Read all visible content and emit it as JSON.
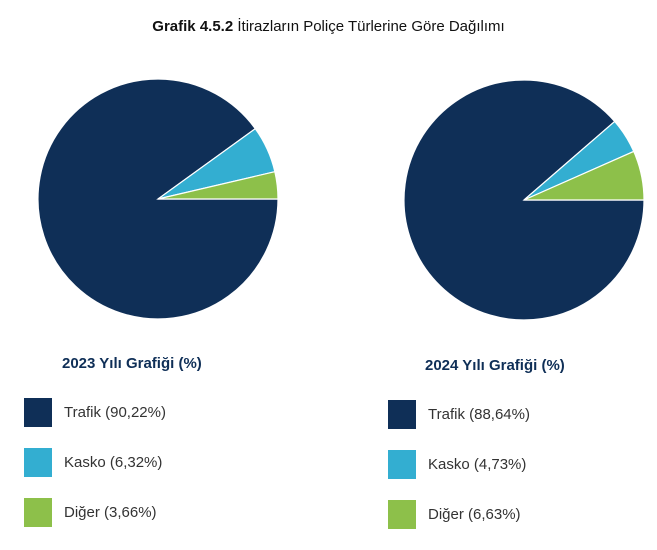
{
  "title": {
    "bold_part": "Grafik 4.5.2",
    "rest": "İtirazların Poliçe Türlerine Göre Dağılımı"
  },
  "colors": {
    "trafik": "#0f2f57",
    "kasko": "#33aed1",
    "diger": "#8dc04a"
  },
  "chart_data": [
    {
      "type": "pie",
      "title": "2023 Yılı Grafiği (%)",
      "slices": [
        {
          "label": "Trafik (90,22%)",
          "name": "Trafik",
          "value": 90.22,
          "color": "#0f2f57"
        },
        {
          "label": "Kasko (6,32%)",
          "name": "Kasko",
          "value": 6.32,
          "color": "#33aed1"
        },
        {
          "label": "Diğer (3,66%)",
          "name": "Diğer",
          "value": 3.66,
          "color": "#8dc04a"
        }
      ]
    },
    {
      "type": "pie",
      "title": "2024 Yılı Grafiği (%)",
      "slices": [
        {
          "label": "Trafik (88,64%)",
          "name": "Trafik",
          "value": 88.64,
          "color": "#0f2f57"
        },
        {
          "label": "Kasko (4,73%)",
          "name": "Kasko",
          "value": 4.73,
          "color": "#33aed1"
        },
        {
          "label": "Diğer (6,63%)",
          "name": "Diğer",
          "value": 6.63,
          "color": "#8dc04a"
        }
      ]
    }
  ]
}
